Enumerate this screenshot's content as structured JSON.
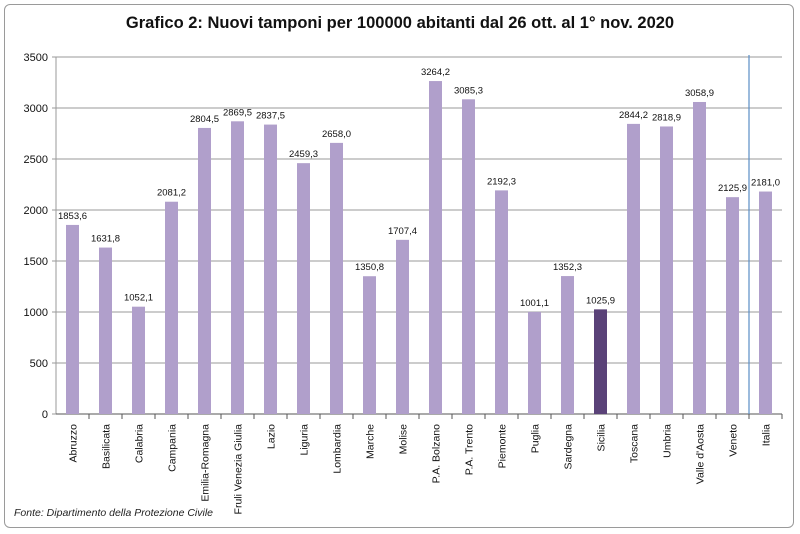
{
  "title": "Grafico 2: Nuovi tamponi per 100000 abitanti dal 26 ott. al 1° nov. 2020",
  "source": "Fonte: Dipartimento della Protezione Civile",
  "colors": {
    "bar": "#b09fcb",
    "highlight": "#5a4278",
    "grid": "#9a9a9a",
    "marker_line": "#5b8ec6"
  },
  "chart_data": {
    "type": "bar",
    "title": "Grafico 2: Nuovi tamponi per 100000 abitanti dal 26 ott. al 1° nov. 2020",
    "xlabel": "",
    "ylabel": "",
    "ylim": [
      0,
      3500
    ],
    "yticks": [
      0,
      500,
      1000,
      1500,
      2000,
      2500,
      3000,
      3500
    ],
    "grid": true,
    "categories": [
      "Abruzzo",
      "Basilicata",
      "Calabria",
      "Campania",
      "Emilia-Romagna",
      "Fruli Venezia Giulia",
      "Lazio",
      "Liguria",
      "Lombardia",
      "Marche",
      "Molise",
      "P.A. Bolzano",
      "P.A. Trento",
      "Piemonte",
      "Puglia",
      "Sardegna",
      "Sicilia",
      "Toscana",
      "Umbria",
      "Valle d'Aosta",
      "Veneto",
      "Italia"
    ],
    "values": [
      1853.6,
      1631.8,
      1052.1,
      2081.2,
      2804.5,
      2869.5,
      2837.5,
      2459.3,
      2658.0,
      1350.8,
      1707.4,
      3264.2,
      3085.3,
      2192.3,
      1001.1,
      1352.3,
      1025.9,
      2844.2,
      2818.9,
      3058.9,
      2125.9,
      2181.0
    ],
    "data_labels": [
      "1853,6",
      "1631,8",
      "1052,1",
      "2081,2",
      "2804,5",
      "2869,5",
      "2837,5",
      "2459,3",
      "2658,0",
      "1350,8",
      "1707,4",
      "3264,2",
      "3085,3",
      "2192,3",
      "1001,1",
      "1352,3",
      "1025,9",
      "2844,2",
      "2818,9",
      "3058,9",
      "2125,9",
      "2181,0"
    ],
    "highlight_category": "Sicilia"
  }
}
